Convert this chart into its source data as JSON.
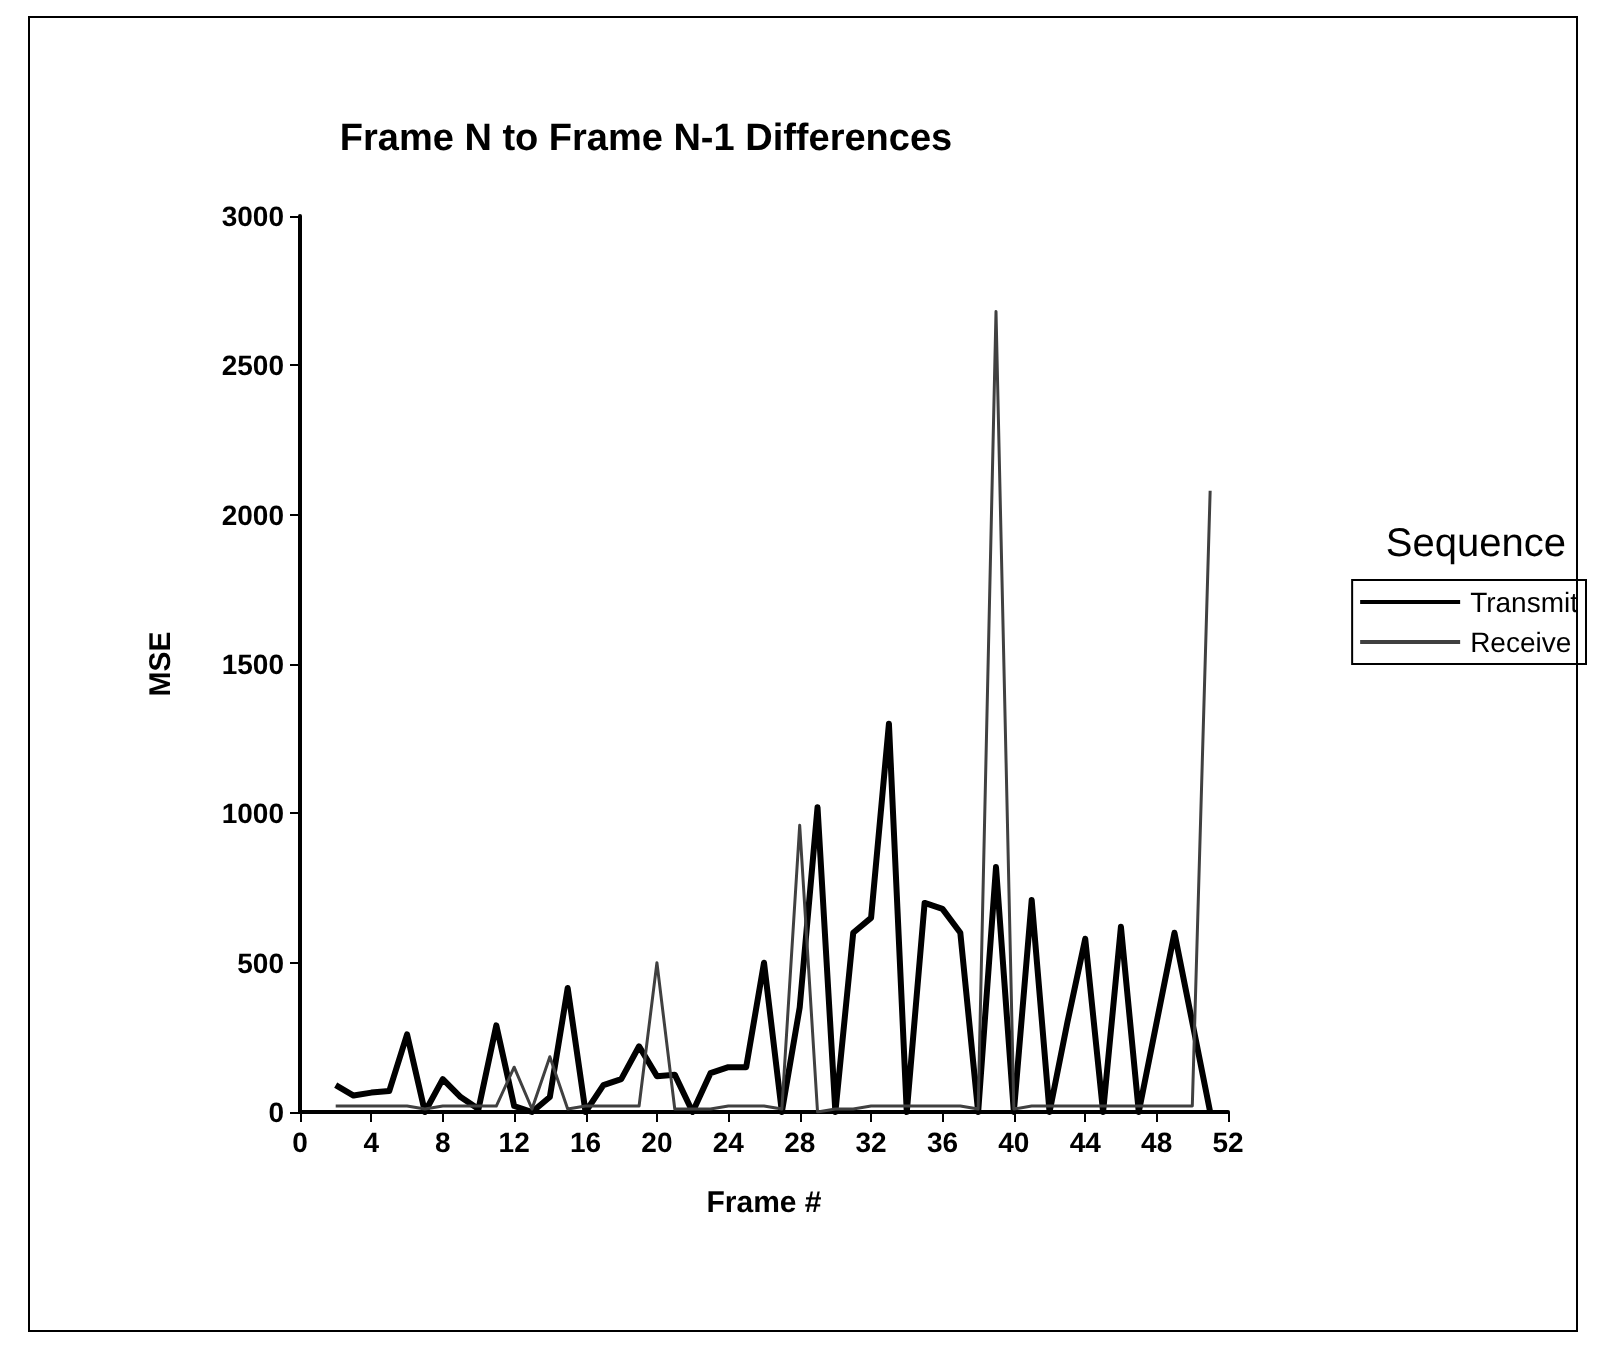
{
  "chart_data": {
    "type": "line",
    "title": "Frame N to Frame N-1 Differences",
    "xlabel": "Frame #",
    "ylabel": "MSE",
    "legend_title": "Sequence",
    "x": [
      2,
      3,
      4,
      5,
      6,
      7,
      8,
      9,
      10,
      11,
      12,
      13,
      14,
      15,
      16,
      17,
      18,
      19,
      20,
      21,
      22,
      23,
      24,
      25,
      26,
      27,
      28,
      29,
      30,
      31,
      32,
      33,
      34,
      35,
      36,
      37,
      38,
      39,
      40,
      41,
      42,
      43,
      44,
      45,
      46,
      47,
      48,
      49,
      50,
      51
    ],
    "series": [
      {
        "name": "Transmit",
        "color": "#000000",
        "values": [
          90,
          55,
          65,
          70,
          260,
          0,
          110,
          50,
          10,
          290,
          20,
          0,
          50,
          415,
          0,
          90,
          110,
          220,
          120,
          125,
          0,
          130,
          150,
          150,
          500,
          0,
          350,
          1020,
          0,
          600,
          650,
          1300,
          0,
          700,
          680,
          600,
          0,
          820,
          0,
          710,
          0,
          300,
          580,
          0,
          620,
          0,
          300,
          600,
          300,
          0
        ]
      },
      {
        "name": "Receive",
        "color": "#404040",
        "values": [
          20,
          20,
          20,
          20,
          20,
          10,
          20,
          20,
          20,
          20,
          150,
          10,
          185,
          10,
          20,
          20,
          20,
          20,
          500,
          10,
          10,
          10,
          20,
          20,
          20,
          10,
          960,
          0,
          10,
          10,
          20,
          20,
          20,
          20,
          20,
          20,
          10,
          2680,
          10,
          20,
          20,
          20,
          20,
          20,
          20,
          20,
          20,
          20,
          20,
          2080
        ]
      }
    ],
    "xlim": [
      0,
      52
    ],
    "xticks": [
      0,
      4,
      8,
      12,
      16,
      20,
      24,
      28,
      32,
      36,
      40,
      44,
      48,
      52
    ],
    "ylim": [
      0,
      3000
    ],
    "yticks": [
      0,
      500,
      1000,
      1500,
      2000,
      2500,
      3000
    ],
    "grid": false,
    "legend": "right",
    "marker": "none",
    "line_style": "solid"
  }
}
